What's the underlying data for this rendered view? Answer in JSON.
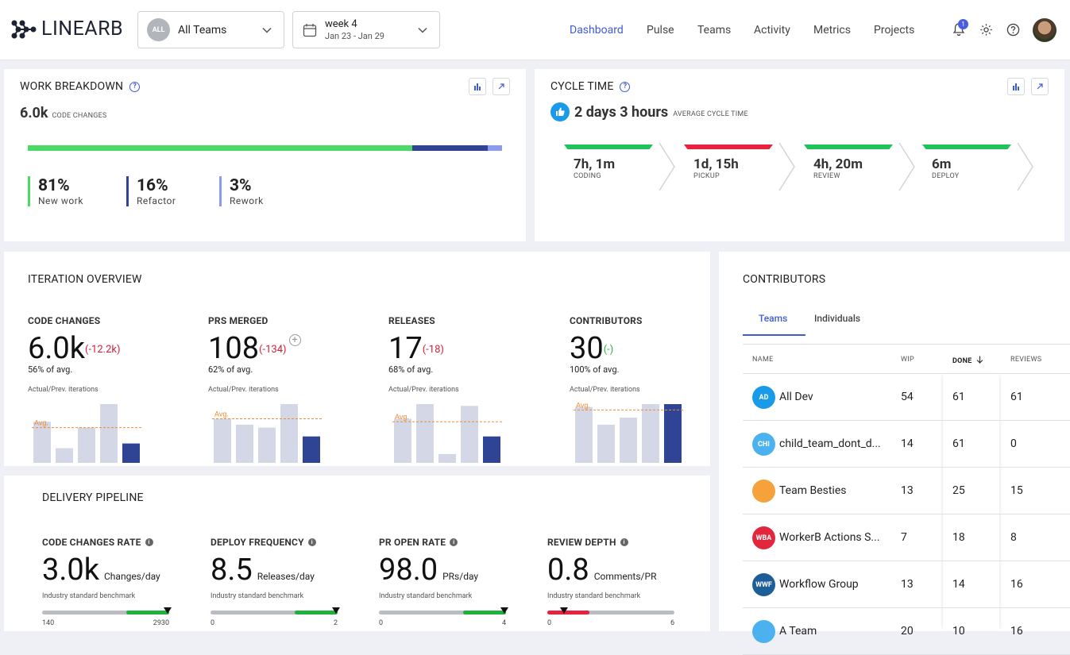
{
  "brand": {
    "name": "LINEARB"
  },
  "filters": {
    "team_badge": "ALL",
    "team_label": "All Teams",
    "week_label": "week 4",
    "week_range": "Jan 23 - Jan 29"
  },
  "nav": {
    "items": [
      "Dashboard",
      "Pulse",
      "Teams",
      "Activity",
      "Metrics",
      "Projects"
    ],
    "active": "Dashboard",
    "notification_count": "1"
  },
  "work_breakdown": {
    "title": "WORK BREAKDOWN",
    "total": "6.0k",
    "total_label": "CODE CHANGES",
    "stats": [
      {
        "pct": "81%",
        "label": "New work",
        "value": 81,
        "color": "#4cd964"
      },
      {
        "pct": "16%",
        "label": "Refactor",
        "value": 16,
        "color": "#2f4494"
      },
      {
        "pct": "3%",
        "label": "Rework",
        "value": 3,
        "color": "#8b9bf0"
      }
    ]
  },
  "cycle_time": {
    "title": "CYCLE TIME",
    "value": "2 days 3 hours",
    "label": "AVERAGE CYCLE TIME",
    "stages": [
      {
        "value": "7h, 1m",
        "label": "CODING",
        "color": "#1fc25b"
      },
      {
        "value": "1d, 15h",
        "label": "PICKUP",
        "color": "#e8213f"
      },
      {
        "value": "4h, 20m",
        "label": "REVIEW",
        "color": "#1fc25b"
      },
      {
        "value": "6m",
        "label": "DEPLOY",
        "color": "#1fc25b"
      }
    ]
  },
  "iteration_overview": {
    "title": "ITERATION OVERVIEW",
    "avg_label": "Avg.",
    "columns": [
      {
        "title": "CODE CHANGES",
        "value": "6.0k",
        "delta": "(-12.2k)",
        "sub": "56% of avg.",
        "caption": "Actual/Prev. iterations",
        "bars": [
          0.7,
          0.25,
          0.6,
          1.0,
          0.33
        ],
        "avg": 0.6
      },
      {
        "title": "PRS MERGED",
        "value": "108",
        "delta": "(-134)",
        "sub": "62% of avg.",
        "caption": "Actual/Prev. iterations",
        "bars": [
          0.75,
          0.65,
          0.6,
          1.0,
          0.45
        ],
        "avg": 0.75
      },
      {
        "title": "RELEASES",
        "value": "17",
        "delta": "(-18)",
        "sub": "68% of avg.",
        "caption": "Actual/Prev. iterations",
        "bars": [
          0.75,
          1.0,
          0.15,
          0.97,
          0.45
        ],
        "avg": 0.7
      },
      {
        "title": "CONTRIBUTORS",
        "value": "30",
        "delta": "(-)",
        "sub": "100% of avg.",
        "caption": "Actual/Prev. iterations",
        "bars": [
          0.95,
          0.65,
          0.77,
          1.0,
          1.0
        ],
        "avg": 0.9
      }
    ]
  },
  "delivery_pipeline": {
    "title": "DELIVERY PIPELINE",
    "bench_caption": "Industry standard benchmark",
    "metrics": [
      {
        "title": "CODE CHANGES RATE",
        "value": "3.0k",
        "unit": "Changes/day",
        "min": "140",
        "max": "2930",
        "position": 0.99,
        "good": true
      },
      {
        "title": "DEPLOY FREQUENCY",
        "value": "8.5",
        "unit": "Releases/day",
        "min": "0",
        "max": "2",
        "position": 0.99,
        "good": true
      },
      {
        "title": "PR OPEN RATE",
        "value": "98.0",
        "unit": "PRs/day",
        "min": "0",
        "max": "4",
        "position": 0.99,
        "good": true
      },
      {
        "title": "REVIEW DEPTH",
        "value": "0.8",
        "unit": "Comments/PR",
        "min": "0",
        "max": "6",
        "position": 0.13,
        "good": false
      }
    ]
  },
  "contributors": {
    "title": "CONTRIBUTORS",
    "tabs": [
      "Teams",
      "Individuals"
    ],
    "active_tab": "Teams",
    "headers": {
      "name": "NAME",
      "wip": "WIP",
      "done": "DONE",
      "reviews": "REVIEWS"
    },
    "rows": [
      {
        "initials": "AD",
        "name": "All Dev",
        "wip": "54",
        "done": "61",
        "reviews": "61",
        "color": "#1a9bea"
      },
      {
        "initials": "CHI",
        "name": "child_team_dont_d...",
        "wip": "14",
        "done": "61",
        "reviews": "0",
        "color": "#4cb2ef"
      },
      {
        "initials": "",
        "name": "Team Besties",
        "wip": "13",
        "done": "25",
        "reviews": "15",
        "color": "#f5a23a"
      },
      {
        "initials": "WBA",
        "name": "WorkerB Actions S...",
        "wip": "7",
        "done": "18",
        "reviews": "8",
        "color": "#e2263b"
      },
      {
        "initials": "WWF",
        "name": "Workflow Group",
        "wip": "13",
        "done": "14",
        "reviews": "16",
        "color": "#1d5e99"
      },
      {
        "initials": "",
        "name": "A Team",
        "wip": "20",
        "done": "10",
        "reviews": "16",
        "color": "#4cb2ef"
      }
    ]
  }
}
